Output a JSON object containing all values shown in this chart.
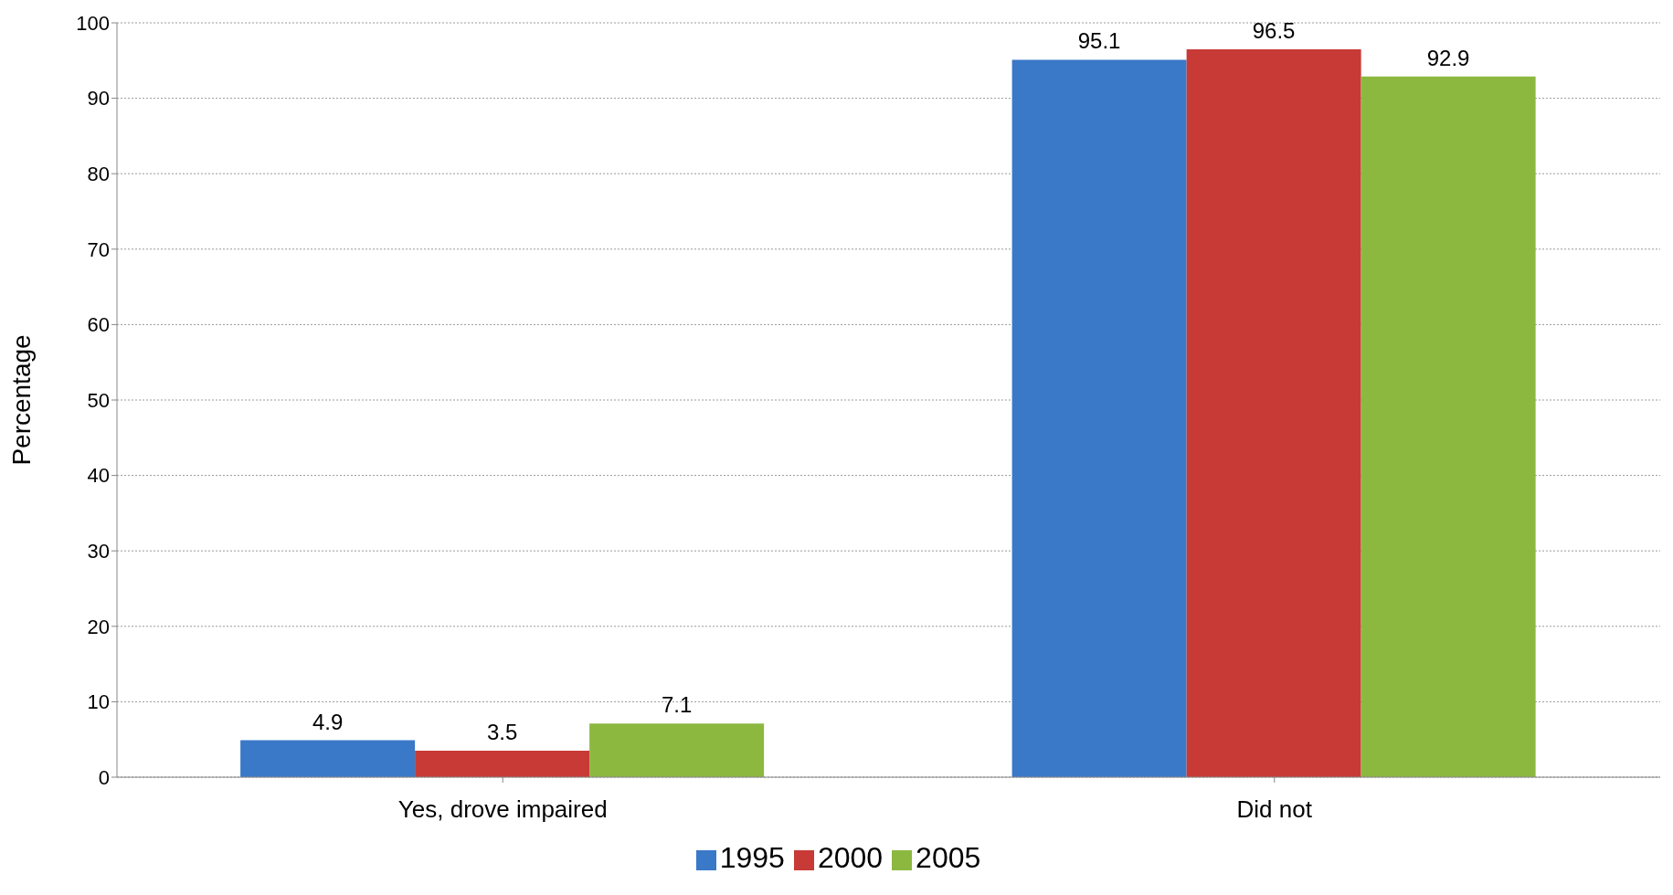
{
  "chart_data": {
    "type": "bar",
    "ylabel": "Percentage",
    "categories": [
      "Yes, drove impaired",
      "Did not"
    ],
    "series": [
      {
        "name": "1995",
        "color": "#3a78c8",
        "values": [
          4.9,
          95.1
        ]
      },
      {
        "name": "2000",
        "color": "#c83a36",
        "values": [
          3.5,
          96.5
        ]
      },
      {
        "name": "2005",
        "color": "#8db840",
        "values": [
          7.1,
          92.9
        ]
      }
    ],
    "ylim": [
      0,
      100
    ],
    "yticks": [
      0,
      10,
      20,
      30,
      40,
      50,
      60,
      70,
      80,
      90,
      100
    ],
    "grid": "y",
    "legend": "bottom",
    "data_labels": true
  }
}
